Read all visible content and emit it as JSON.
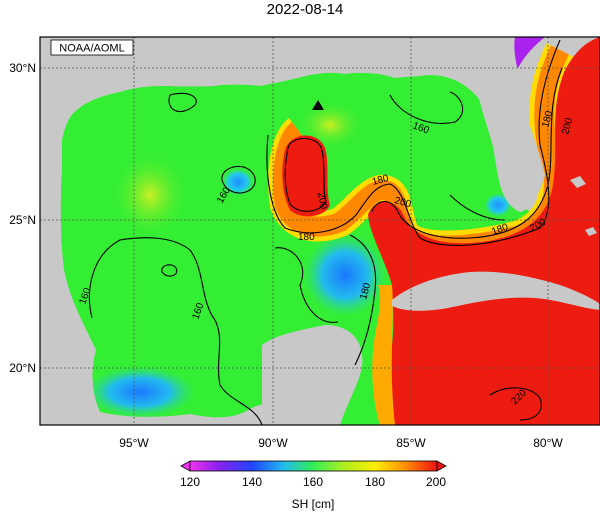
{
  "title": "2022-08-14",
  "credit": "NOAA/AOML",
  "lat_labels": [
    "30°N",
    "25°N",
    "20°N"
  ],
  "lon_labels": [
    "95°W",
    "90°W",
    "85°W",
    "80°W"
  ],
  "contour_labels": [
    "160",
    "160",
    "160",
    "160",
    "180",
    "180",
    "180",
    "180",
    "180",
    "200",
    "200",
    "200",
    "200",
    "220"
  ],
  "colorbar": {
    "ticks": [
      "120",
      "140",
      "160",
      "180",
      "200"
    ],
    "label": "SH [cm]",
    "range": [
      120,
      200
    ]
  },
  "colors": {
    "land": "#c8c8c8",
    "ocean_warm": "#ee1c10",
    "ocean_mid": "#33ee33",
    "ocean_cool": "#22bbee"
  }
}
